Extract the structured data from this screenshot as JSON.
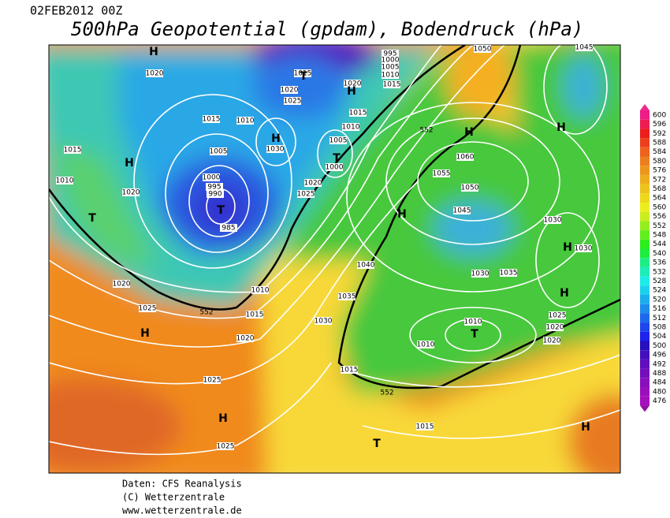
{
  "header": {
    "date": "02FEB2012 00Z",
    "title": "500hPa Geopotential (gpdam), Bodendruck (hPa)"
  },
  "colorbar": {
    "labels": [
      "600",
      "596",
      "592",
      "588",
      "584",
      "580",
      "576",
      "572",
      "568",
      "564",
      "560",
      "556",
      "552",
      "548",
      "544",
      "540",
      "536",
      "532",
      "528",
      "524",
      "520",
      "516",
      "512",
      "508",
      "504",
      "500",
      "496",
      "492",
      "488",
      "484",
      "480",
      "476"
    ]
  },
  "map": {
    "isobars": [
      "1020",
      "1015",
      "1020",
      "1015",
      "1020",
      "1025",
      "1015",
      "1010",
      "1015",
      "1010",
      "1030",
      "1005",
      "1000",
      "1005",
      "1015",
      "1010",
      "1020",
      "1000",
      "995",
      "990",
      "985",
      "1020",
      "1025",
      "1050",
      "1045",
      "1060",
      "1055",
      "1050",
      "1045",
      "1030",
      "1030",
      "1040",
      "1030",
      "1035",
      "1010",
      "1035",
      "1020",
      "1025",
      "1015",
      "1030",
      "1020",
      "1010",
      "1010",
      "1025",
      "1020",
      "1020",
      "1015",
      "1025",
      "1015",
      "1025",
      "995",
      "1000",
      "1005",
      "1010"
    ],
    "contour_labels": [
      "552",
      "552",
      "552"
    ],
    "systems": [
      "H",
      "H",
      "T",
      "H",
      "T",
      "T",
      "H",
      "H",
      "H",
      "H",
      "H",
      "H",
      "T",
      "H",
      "H",
      "T",
      "H",
      "T"
    ]
  },
  "footer": {
    "source": "Daten: CFS Reanalysis",
    "copyright": "(C) Wetterzentrale",
    "url": "www.wetterzentrale.de"
  }
}
